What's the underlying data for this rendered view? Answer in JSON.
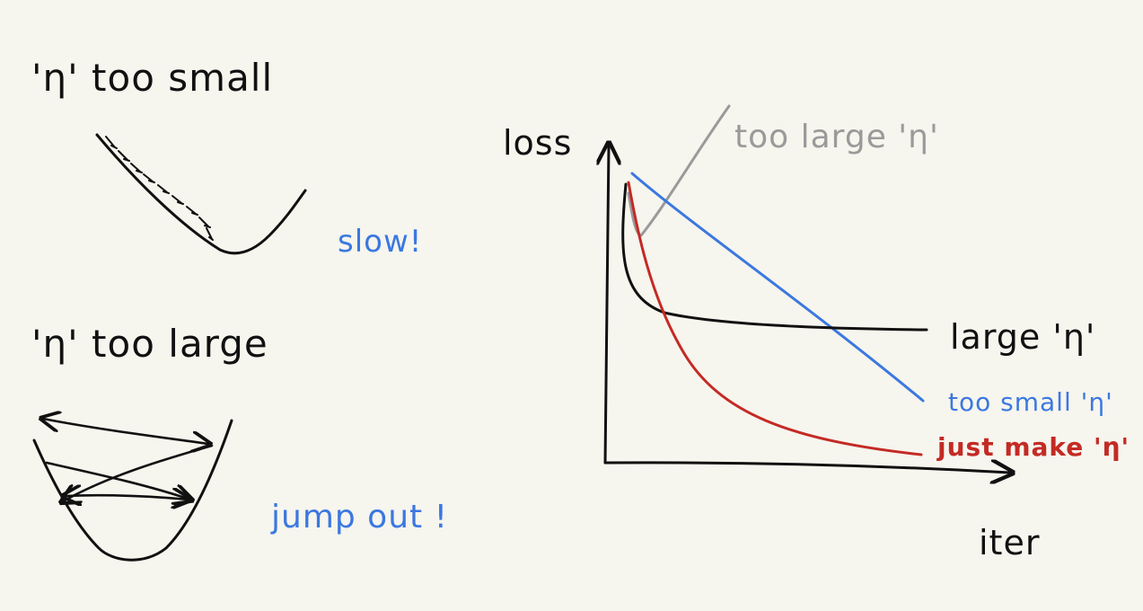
{
  "colors": {
    "ink": "#111111",
    "blue": "#3b78e0",
    "red": "#c42a24",
    "gray": "#9a9a9a",
    "background": "#f6f5ee"
  },
  "left_panel": {
    "small_title": "'η' too small",
    "small_note": "slow!",
    "large_title": "'η' too large",
    "large_note": "jump out !"
  },
  "graph": {
    "y_label": "loss",
    "x_label": "iter",
    "curves": [
      {
        "label": "too large 'η'",
        "color": "#9a9a9a"
      },
      {
        "label": "large 'η'",
        "color": "#111111"
      },
      {
        "label": "too small 'η'",
        "color": "#3b78e0"
      },
      {
        "label": "just make 'η'",
        "color": "#c42a24"
      }
    ]
  }
}
